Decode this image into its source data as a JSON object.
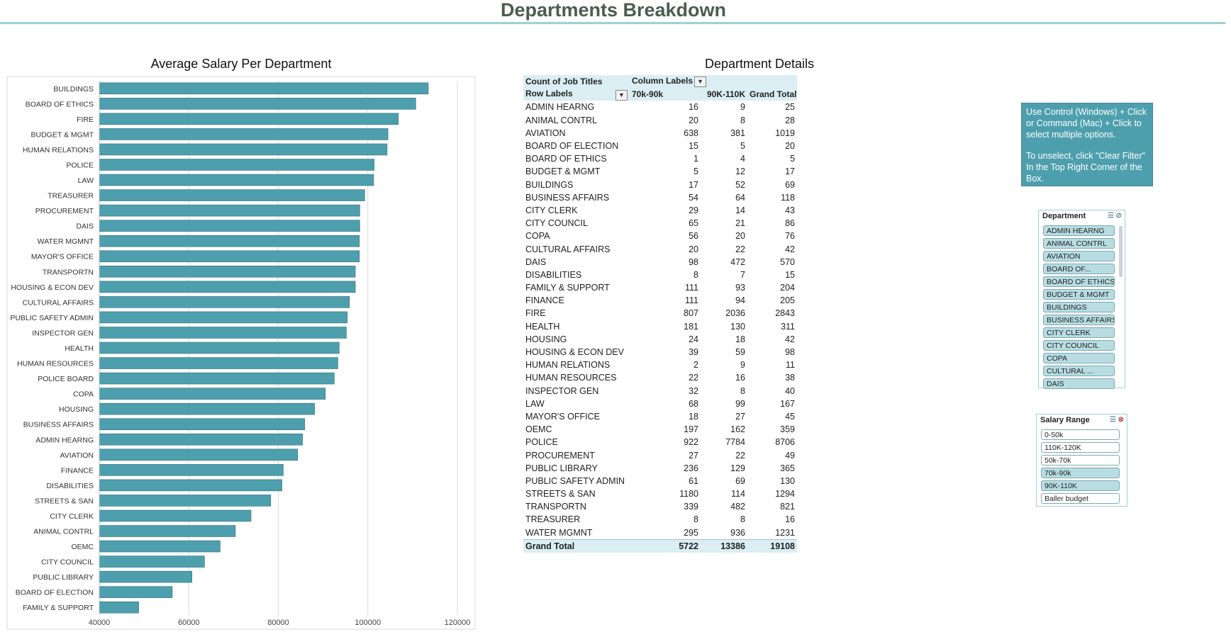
{
  "page_title": "Departments Breakdown",
  "chart_data": {
    "type": "bar",
    "orientation": "horizontal",
    "title": "Average Salary Per Department",
    "xlabel": "",
    "ylabel": "",
    "xlim": [
      40000,
      120000
    ],
    "xticks": [
      "40000",
      "60000",
      "80000",
      "100000",
      "120000"
    ],
    "grid": true,
    "bar_color": "#4e9fad",
    "categories": [
      "BUILDINGS",
      "BOARD OF ETHICS",
      "FIRE",
      "BUDGET & MGMT",
      "HUMAN RELATIONS",
      "POLICE",
      "LAW",
      "TREASURER",
      "PROCUREMENT",
      "DAIS",
      "WATER MGMNT",
      "MAYOR'S OFFICE",
      "TRANSPORTN",
      "HOUSING & ECON DEV",
      "CULTURAL AFFAIRS",
      "PUBLIC SAFETY ADMIN",
      "INSPECTOR GEN",
      "HEALTH",
      "HUMAN RESOURCES",
      "POLICE BOARD",
      "COPA",
      "HOUSING",
      "BUSINESS AFFAIRS",
      "ADMIN HEARNG",
      "AVIATION",
      "FINANCE",
      "DISABILITIES",
      "STREETS & SAN",
      "CITY CLERK",
      "ANIMAL CONTRL",
      "OEMC",
      "CITY COUNCIL",
      "PUBLIC LIBRARY",
      "BOARD OF ELECTION",
      "FAMILY & SUPPORT"
    ],
    "values": [
      113500,
      110700,
      106800,
      104500,
      104300,
      101400,
      101300,
      99300,
      98200,
      98200,
      98100,
      98100,
      97200,
      97200,
      95900,
      95400,
      95200,
      93600,
      93300,
      92500,
      90500,
      88100,
      85900,
      85400,
      84300,
      81100,
      80800,
      78300,
      73900,
      70400,
      67000,
      63500,
      60700,
      56300,
      48800
    ]
  },
  "pivot": {
    "title": "Department Details",
    "header1": {
      "measure": "Count of Job Titles",
      "column_labels": "Column Labels"
    },
    "header2": {
      "row_labels": "Row Labels",
      "c1": "70k-90k",
      "c2": "90K-110K",
      "c3": "Grand Total"
    },
    "rows": [
      {
        "label": "ADMIN HEARNG",
        "a": "16",
        "b": "9",
        "t": "25"
      },
      {
        "label": "ANIMAL CONTRL",
        "a": "20",
        "b": "8",
        "t": "28"
      },
      {
        "label": "AVIATION",
        "a": "638",
        "b": "381",
        "t": "1019"
      },
      {
        "label": "BOARD OF ELECTION",
        "a": "15",
        "b": "5",
        "t": "20"
      },
      {
        "label": "BOARD OF ETHICS",
        "a": "1",
        "b": "4",
        "t": "5"
      },
      {
        "label": "BUDGET & MGMT",
        "a": "5",
        "b": "12",
        "t": "17"
      },
      {
        "label": "BUILDINGS",
        "a": "17",
        "b": "52",
        "t": "69"
      },
      {
        "label": "BUSINESS AFFAIRS",
        "a": "54",
        "b": "64",
        "t": "118"
      },
      {
        "label": "CITY CLERK",
        "a": "29",
        "b": "14",
        "t": "43"
      },
      {
        "label": "CITY COUNCIL",
        "a": "65",
        "b": "21",
        "t": "86"
      },
      {
        "label": "COPA",
        "a": "56",
        "b": "20",
        "t": "76"
      },
      {
        "label": "CULTURAL AFFAIRS",
        "a": "20",
        "b": "22",
        "t": "42"
      },
      {
        "label": "DAIS",
        "a": "98",
        "b": "472",
        "t": "570"
      },
      {
        "label": "DISABILITIES",
        "a": "8",
        "b": "7",
        "t": "15"
      },
      {
        "label": "FAMILY & SUPPORT",
        "a": "111",
        "b": "93",
        "t": "204"
      },
      {
        "label": "FINANCE",
        "a": "111",
        "b": "94",
        "t": "205"
      },
      {
        "label": "FIRE",
        "a": "807",
        "b": "2036",
        "t": "2843"
      },
      {
        "label": "HEALTH",
        "a": "181",
        "b": "130",
        "t": "311"
      },
      {
        "label": "HOUSING",
        "a": "24",
        "b": "18",
        "t": "42"
      },
      {
        "label": "HOUSING & ECON DEV",
        "a": "39",
        "b": "59",
        "t": "98"
      },
      {
        "label": "HUMAN RELATIONS",
        "a": "2",
        "b": "9",
        "t": "11"
      },
      {
        "label": "HUMAN RESOURCES",
        "a": "22",
        "b": "16",
        "t": "38"
      },
      {
        "label": "INSPECTOR GEN",
        "a": "32",
        "b": "8",
        "t": "40"
      },
      {
        "label": "LAW",
        "a": "68",
        "b": "99",
        "t": "167"
      },
      {
        "label": "MAYOR'S OFFICE",
        "a": "18",
        "b": "27",
        "t": "45"
      },
      {
        "label": "OEMC",
        "a": "197",
        "b": "162",
        "t": "359"
      },
      {
        "label": "POLICE",
        "a": "922",
        "b": "7784",
        "t": "8706"
      },
      {
        "label": "PROCUREMENT",
        "a": "27",
        "b": "22",
        "t": "49"
      },
      {
        "label": "PUBLIC LIBRARY",
        "a": "236",
        "b": "129",
        "t": "365"
      },
      {
        "label": "PUBLIC SAFETY ADMIN",
        "a": "61",
        "b": "69",
        "t": "130"
      },
      {
        "label": "STREETS & SAN",
        "a": "1180",
        "b": "114",
        "t": "1294"
      },
      {
        "label": "TRANSPORTN",
        "a": "339",
        "b": "482",
        "t": "821"
      },
      {
        "label": "TREASURER",
        "a": "8",
        "b": "8",
        "t": "16"
      },
      {
        "label": "WATER MGMNT",
        "a": "295",
        "b": "936",
        "t": "1231"
      }
    ],
    "total": {
      "label": "Grand Total",
      "a": "5722",
      "b": "13386",
      "t": "19108"
    }
  },
  "info": {
    "line1": "Use Control (Windows) + Click or Command (Mac) + Click to select multiple options.",
    "line2": "To unselect, click \"Clear Filter\" In the Top Right Corner of the Box."
  },
  "slicer_department": {
    "title": "Department",
    "items": [
      {
        "label": "ADMIN HEARNG",
        "selected": true
      },
      {
        "label": "ANIMAL CONTRL",
        "selected": true
      },
      {
        "label": "AVIATION",
        "selected": true
      },
      {
        "label": "BOARD OF...",
        "selected": true
      },
      {
        "label": "BOARD OF ETHICS",
        "selected": true
      },
      {
        "label": "BUDGET & MGMT",
        "selected": true
      },
      {
        "label": "BUILDINGS",
        "selected": true
      },
      {
        "label": "BUSINESS AFFAIRS",
        "selected": true
      },
      {
        "label": "CITY CLERK",
        "selected": true
      },
      {
        "label": "CITY COUNCIL",
        "selected": true
      },
      {
        "label": "COPA",
        "selected": true
      },
      {
        "label": "CULTURAL ...",
        "selected": true
      },
      {
        "label": "DAIS",
        "selected": true
      }
    ]
  },
  "slicer_salary": {
    "title": "Salary Range",
    "items": [
      {
        "label": "0-50k",
        "selected": false
      },
      {
        "label": "110K-120K",
        "selected": false
      },
      {
        "label": "50k-70k",
        "selected": false
      },
      {
        "label": "70k-90k",
        "selected": true
      },
      {
        "label": "90K-110K",
        "selected": true
      },
      {
        "label": "Baller budget",
        "selected": false
      }
    ]
  }
}
